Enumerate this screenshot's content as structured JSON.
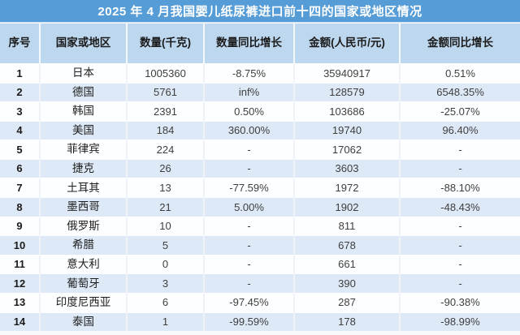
{
  "colors": {
    "title_bar_bg": "#569CD6",
    "title_text": "#ffffff",
    "header_bg": "#BDD7EE",
    "stripe_even_bg": "#DDE9F6",
    "stripe_odd_bg": "#FDFEFF"
  },
  "table": {
    "title": "2025 年 4 月我国婴儿纸尿裤进口前十四的国家或地区情况",
    "columns": [
      "序号",
      "国家或地区",
      "数量(千克)",
      "数量同比增长",
      "金额(人民币/元)",
      "金额同比增长"
    ],
    "rows": [
      [
        "1",
        "日本",
        "1005360",
        "-8.75%",
        "35940917",
        "0.51%"
      ],
      [
        "2",
        "德国",
        "5761",
        "inf%",
        "128579",
        "6548.35%"
      ],
      [
        "3",
        "韩国",
        "2391",
        "0.50%",
        "103686",
        "-25.07%"
      ],
      [
        "4",
        "美国",
        "184",
        "360.00%",
        "19740",
        "96.40%"
      ],
      [
        "5",
        "菲律宾",
        "224",
        "-",
        "17062",
        "-"
      ],
      [
        "6",
        "捷克",
        "26",
        "-",
        "3603",
        "-"
      ],
      [
        "7",
        "土耳其",
        "13",
        "-77.59%",
        "1972",
        "-88.10%"
      ],
      [
        "8",
        "墨西哥",
        "21",
        "5.00%",
        "1902",
        "-48.43%"
      ],
      [
        "9",
        "俄罗斯",
        "10",
        "-",
        "811",
        "-"
      ],
      [
        "10",
        "希腊",
        "5",
        "-",
        "678",
        "-"
      ],
      [
        "11",
        "意大利",
        "0",
        "-",
        "661",
        "-"
      ],
      [
        "12",
        "葡萄牙",
        "3",
        "-",
        "390",
        "-"
      ],
      [
        "13",
        "印度尼西亚",
        "6",
        "-97.45%",
        "287",
        "-90.38%"
      ],
      [
        "14",
        "泰国",
        "1",
        "-99.59%",
        "178",
        "-98.99%"
      ]
    ]
  }
}
